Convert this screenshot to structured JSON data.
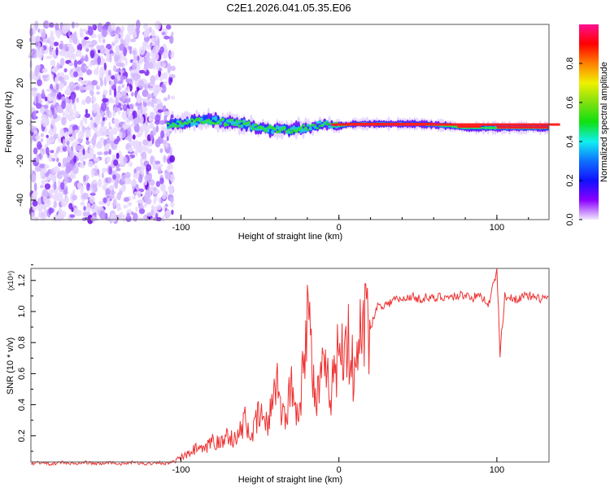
{
  "chart_data": [
    {
      "type": "heatmap",
      "title": "C2E1.2026.041.05.35.E06",
      "xlabel": "Height of straight line (km)",
      "ylabel": "Frequency (Hz)",
      "xlim": [
        -195,
        133
      ],
      "ylim": [
        -50,
        50
      ],
      "xticks": [
        -100,
        0,
        100
      ],
      "yticks": [
        -40,
        -20,
        0,
        20,
        40
      ],
      "colorbar": {
        "label": "Normalized spectral amplitude",
        "range": [
          0,
          1
        ],
        "ticks": [
          0.0,
          0.2,
          0.4,
          0.6,
          0.8
        ]
      },
      "noise_region": [
        -195,
        -105
      ],
      "ridge": [
        [
          -108,
          -2
        ],
        [
          -95,
          0
        ],
        [
          -85,
          1
        ],
        [
          -70,
          0
        ],
        [
          -60,
          -1
        ],
        [
          -50,
          -3
        ],
        [
          -40,
          -4
        ],
        [
          -30,
          -4
        ],
        [
          -20,
          -3
        ],
        [
          -10,
          -1
        ],
        [
          0,
          -2
        ],
        [
          10,
          -1
        ],
        [
          30,
          -1
        ],
        [
          50,
          -1
        ],
        [
          70,
          -2
        ],
        [
          80,
          -3
        ],
        [
          90,
          -3
        ],
        [
          100,
          -3
        ],
        [
          115,
          -3
        ],
        [
          133,
          -3
        ]
      ]
    },
    {
      "type": "line",
      "xlabel": "Height of straight line (km)",
      "ylabel": "SNR (10 * v/v)",
      "scale_label": "(x10⁴)",
      "xlim": [
        -195,
        133
      ],
      "ylim": [
        0,
        1.28
      ],
      "xticks": [
        -100,
        0,
        100
      ],
      "yticks": [
        0.2,
        0.4,
        0.6,
        0.8,
        1.0,
        1.2
      ],
      "color": "#ee3333",
      "x": [
        -195,
        -190,
        -185,
        -180,
        -175,
        -170,
        -165,
        -160,
        -155,
        -150,
        -145,
        -140,
        -135,
        -130,
        -125,
        -120,
        -115,
        -110,
        -105,
        -100,
        -95,
        -90,
        -85,
        -80,
        -75,
        -70,
        -65,
        -60,
        -55,
        -50,
        -45,
        -40,
        -35,
        -30,
        -25,
        -20,
        -15,
        -10,
        -5,
        0,
        5,
        10,
        15,
        20,
        25,
        30,
        35,
        40,
        45,
        50,
        55,
        60,
        65,
        70,
        75,
        80,
        85,
        90,
        95,
        100,
        102,
        105,
        110,
        115,
        120,
        125,
        130,
        133
      ],
      "values": [
        0.02,
        0.03,
        0.02,
        0.02,
        0.03,
        0.02,
        0.02,
        0.03,
        0.02,
        0.02,
        0.03,
        0.02,
        0.02,
        0.03,
        0.02,
        0.02,
        0.03,
        0.02,
        0.03,
        0.06,
        0.08,
        0.12,
        0.1,
        0.18,
        0.14,
        0.22,
        0.16,
        0.3,
        0.2,
        0.35,
        0.25,
        0.6,
        0.3,
        0.5,
        0.35,
        1.08,
        0.4,
        0.6,
        0.5,
        0.75,
        0.85,
        0.55,
        0.95,
        0.9,
        1.05,
        1.04,
        1.08,
        1.07,
        1.1,
        1.08,
        1.09,
        1.08,
        1.1,
        1.09,
        1.1,
        1.11,
        1.09,
        1.1,
        1.05,
        1.27,
        0.73,
        1.1,
        1.08,
        1.09,
        1.1,
        1.08,
        1.09,
        1.08
      ]
    }
  ]
}
